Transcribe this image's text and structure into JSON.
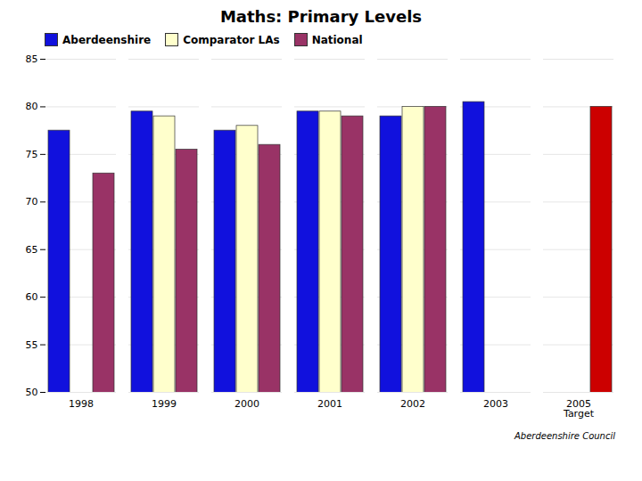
{
  "chart_data": {
    "type": "bar",
    "title": "Maths: Primary Levels",
    "categories": [
      "1998",
      "1999",
      "2000",
      "2001",
      "2002",
      "2003",
      "2005\nTarget"
    ],
    "series": [
      {
        "name": "Aberdeenshire",
        "color": "#1111DD",
        "values": [
          77.5,
          79.5,
          77.5,
          79.5,
          79.0,
          80.5,
          null
        ]
      },
      {
        "name": "Comparator LAs",
        "color": "#FFFFCC",
        "values": [
          null,
          79.0,
          78.0,
          79.5,
          80.0,
          null,
          null
        ]
      },
      {
        "name": "National",
        "color": "#993366",
        "colors": [
          "#993366",
          "#993366",
          "#993366",
          "#993366",
          "#993366",
          "#993366",
          "#CC0000"
        ],
        "values": [
          73.0,
          75.5,
          76.0,
          79.0,
          80.0,
          null,
          80.0
        ]
      }
    ],
    "ylim": [
      50,
      85
    ],
    "yticks": [
      50,
      55,
      60,
      65,
      70,
      75,
      80,
      85
    ],
    "grid": true,
    "legend": "upper left",
    "annotations": [
      "Aberdeenshire Council"
    ]
  }
}
